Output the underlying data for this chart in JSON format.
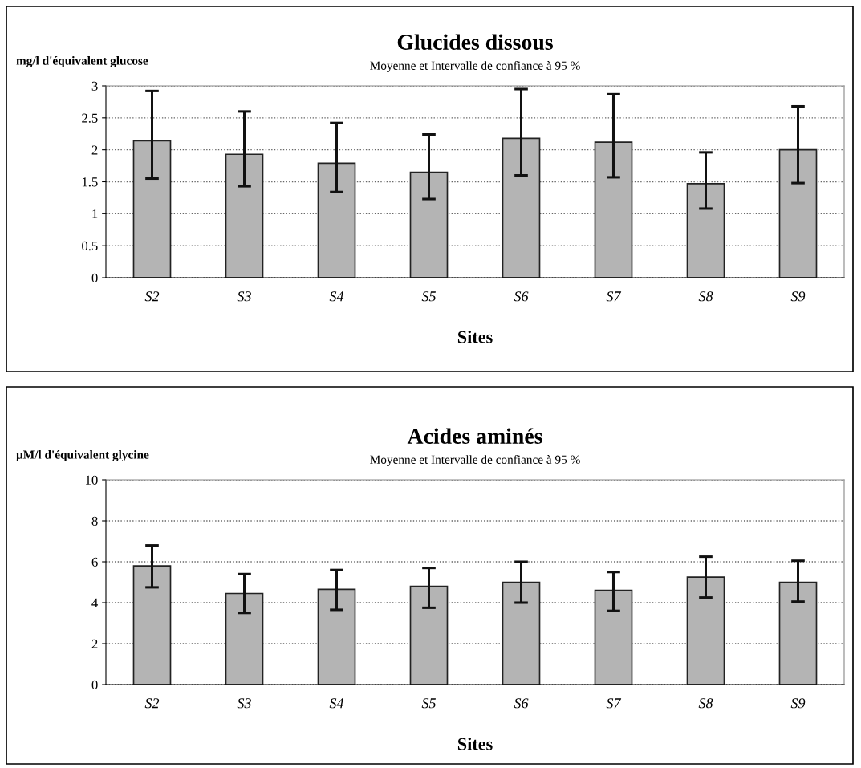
{
  "chart_data": [
    {
      "type": "bar",
      "title": "Glucides dissous",
      "subtitle": "Moyenne et Intervalle de confiance à 95 %",
      "ylabel": "mg/l d'équivalent glucose",
      "xlabel": "Sites",
      "categories": [
        "S2",
        "S3",
        "S4",
        "S5",
        "S6",
        "S7",
        "S8",
        "S9"
      ],
      "values": [
        2.14,
        1.93,
        1.79,
        1.65,
        2.18,
        2.12,
        1.47,
        2.0
      ],
      "errors": [
        [
          1.55,
          2.92
        ],
        [
          1.43,
          2.6
        ],
        [
          1.34,
          2.42
        ],
        [
          1.23,
          2.24
        ],
        [
          1.6,
          2.95
        ],
        [
          1.57,
          2.87
        ],
        [
          1.08,
          1.96
        ],
        [
          1.48,
          2.68
        ]
      ],
      "color": "#b4b4b4",
      "ylim": [
        0,
        3
      ],
      "yticks": [
        0,
        0.5,
        1,
        1.5,
        2,
        2.5,
        3
      ],
      "grid": "y",
      "legend": false
    },
    {
      "type": "bar",
      "title": "Acides aminés",
      "subtitle": "Moyenne et Intervalle de confiance à 95 %",
      "ylabel": "µM/l d'équivalent glycine",
      "xlabel": "Sites",
      "categories": [
        "S2",
        "S3",
        "S4",
        "S5",
        "S6",
        "S7",
        "S8",
        "S9"
      ],
      "values": [
        5.8,
        4.45,
        4.65,
        4.8,
        5.0,
        4.6,
        5.25,
        5.0
      ],
      "errors": [
        [
          4.75,
          6.8
        ],
        [
          3.5,
          5.4
        ],
        [
          3.65,
          5.6
        ],
        [
          3.75,
          5.7
        ],
        [
          4.0,
          6.0
        ],
        [
          3.6,
          5.5
        ],
        [
          4.25,
          6.25
        ],
        [
          4.05,
          6.05
        ]
      ],
      "color": "#b4b4b4",
      "ylim": [
        0,
        10
      ],
      "yticks": [
        0,
        2,
        4,
        6,
        8,
        10
      ],
      "grid": "y",
      "legend": false
    }
  ]
}
